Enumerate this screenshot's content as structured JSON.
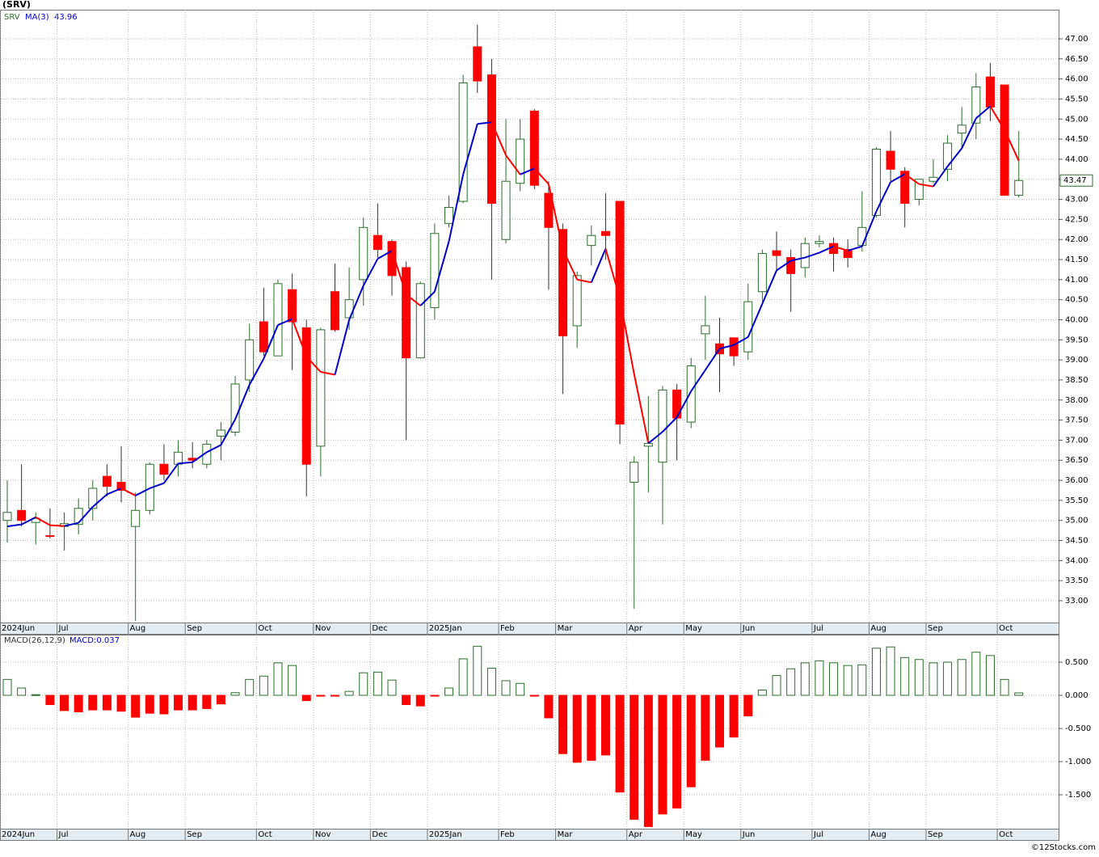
{
  "source": "©12Stocks.com",
  "chart_data": [
    {
      "type": "candlestick",
      "title": "(SRV)",
      "ticker": "SRV",
      "categories": [
        "2024Jun",
        null,
        null,
        null,
        "Jul",
        null,
        null,
        null,
        null,
        "Aug",
        null,
        null,
        null,
        "Sep",
        null,
        null,
        null,
        null,
        "Oct",
        null,
        null,
        null,
        "Nov",
        null,
        null,
        null,
        "Dec",
        null,
        null,
        null,
        "2025Jan",
        null,
        null,
        null,
        null,
        "Feb",
        null,
        null,
        null,
        "Mar",
        null,
        null,
        null,
        null,
        "Apr",
        null,
        null,
        null,
        "May",
        null,
        null,
        null,
        "Jun",
        null,
        null,
        null,
        null,
        "Jul",
        null,
        null,
        null,
        "Aug",
        null,
        null,
        null,
        "Sep",
        null,
        null,
        null,
        null,
        "Oct",
        null
      ],
      "open": [
        35.0,
        35.25,
        34.95,
        34.62,
        34.85,
        34.9,
        35.3,
        36.1,
        35.95,
        34.85,
        35.25,
        36.4,
        36.4,
        36.55,
        36.4,
        37.1,
        37.2,
        38.5,
        39.95,
        39.1,
        40.75,
        39.8,
        36.85,
        40.7,
        40.05,
        41.0,
        42.1,
        41.95,
        41.3,
        39.05,
        40.3,
        42.4,
        42.95,
        46.8,
        46.1,
        42.0,
        43.4,
        45.2,
        43.15,
        42.25,
        39.85,
        41.85,
        42.2,
        42.95,
        35.95,
        36.85,
        36.45,
        38.25,
        37.45,
        39.65,
        39.4,
        39.55,
        39.2,
        40.7,
        41.72,
        41.55,
        41.3,
        41.9,
        41.9,
        41.75,
        41.85,
        42.6,
        44.2,
        43.7,
        43.0,
        43.45,
        43.75,
        44.65,
        44.9,
        46.05,
        45.85,
        43.1
      ],
      "high": [
        36.0,
        36.4,
        35.2,
        35.3,
        35.2,
        35.55,
        36.0,
        36.4,
        36.85,
        35.7,
        36.45,
        36.9,
        37.0,
        36.95,
        37.0,
        37.45,
        38.6,
        39.9,
        40.8,
        41.0,
        41.15,
        40.0,
        39.8,
        41.4,
        41.3,
        42.55,
        42.9,
        42.0,
        41.45,
        40.95,
        42.4,
        43.1,
        46.1,
        47.35,
        46.5,
        45.0,
        45.0,
        45.25,
        43.45,
        42.4,
        41.2,
        42.35,
        43.15,
        42.95,
        36.6,
        38.1,
        38.35,
        38.4,
        39.05,
        40.6,
        40.05,
        39.55,
        40.9,
        41.75,
        42.2,
        41.75,
        42.05,
        42.1,
        42.05,
        42.0,
        43.2,
        44.3,
        44.7,
        43.8,
        43.5,
        44.0,
        44.6,
        45.3,
        46.15,
        46.4,
        45.85,
        44.7
      ],
      "low": [
        34.45,
        34.85,
        34.4,
        34.55,
        34.25,
        34.65,
        35.0,
        35.6,
        35.45,
        32.5,
        35.15,
        36.0,
        36.1,
        36.3,
        36.3,
        36.5,
        37.1,
        38.2,
        39.1,
        39.1,
        38.75,
        35.6,
        36.1,
        39.7,
        39.75,
        40.35,
        41.55,
        40.6,
        37.0,
        39.05,
        40.0,
        42.3,
        42.9,
        45.65,
        41.0,
        41.9,
        43.2,
        43.25,
        40.75,
        38.15,
        39.3,
        41.35,
        41.5,
        36.9,
        32.8,
        35.7,
        34.9,
        36.5,
        37.3,
        39.0,
        38.2,
        38.85,
        39.0,
        40.45,
        41.2,
        40.2,
        41.05,
        41.8,
        41.2,
        41.3,
        41.7,
        42.55,
        43.45,
        42.3,
        42.85,
        43.4,
        43.45,
        44.3,
        44.5,
        44.95,
        43.1,
        43.05
      ],
      "close": [
        35.2,
        35.0,
        35.05,
        34.6,
        34.92,
        35.3,
        35.8,
        35.85,
        35.75,
        35.25,
        36.4,
        36.15,
        36.7,
        36.5,
        36.9,
        37.25,
        38.4,
        39.5,
        39.2,
        40.9,
        39.95,
        36.4,
        39.75,
        39.75,
        40.5,
        42.3,
        41.75,
        41.1,
        39.05,
        40.9,
        42.15,
        42.8,
        45.9,
        45.95,
        42.9,
        43.45,
        44.5,
        43.35,
        42.3,
        39.6,
        41.1,
        42.1,
        42.1,
        37.4,
        36.45,
        36.92,
        38.25,
        37.55,
        38.85,
        39.85,
        39.15,
        39.1,
        40.45,
        41.65,
        41.6,
        41.15,
        41.9,
        41.95,
        41.65,
        41.55,
        42.3,
        44.25,
        43.75,
        42.9,
        43.5,
        43.55,
        44.4,
        44.85,
        45.8,
        45.3,
        43.1,
        43.47
      ],
      "up_color": "#2a6e2a",
      "down_color": "#ff0000",
      "ma": {
        "name": "MA(3)",
        "up_color": "#0000cc",
        "down_color": "#ff0000",
        "values": [
          34.85,
          34.9,
          35.08,
          34.88,
          34.86,
          34.94,
          35.34,
          35.65,
          35.8,
          35.62,
          35.8,
          35.93,
          36.42,
          36.45,
          36.7,
          36.88,
          37.52,
          38.38,
          39.03,
          39.87,
          40.02,
          39.08,
          38.7,
          38.63,
          40.0,
          40.85,
          41.52,
          41.72,
          40.63,
          40.35,
          40.7,
          41.95,
          43.62,
          44.88,
          44.92,
          44.1,
          43.62,
          43.77,
          43.38,
          41.75,
          41.0,
          40.93,
          41.77,
          40.53,
          38.65,
          36.92,
          37.21,
          37.57,
          38.22,
          38.75,
          39.28,
          39.37,
          39.57,
          40.4,
          41.23,
          41.47,
          41.55,
          41.67,
          41.83,
          41.72,
          41.83,
          42.7,
          43.43,
          43.63,
          43.38,
          43.32,
          43.82,
          44.27,
          45.02,
          45.32,
          44.73,
          43.96
        ]
      },
      "ylim": [
        32.456,
        47.725
      ],
      "yticks": [
        {
          "value": 47,
          "label": "47.00"
        },
        {
          "value": 46.5,
          "label": "46.50"
        },
        {
          "value": 46,
          "label": "46.00"
        },
        {
          "value": 45.5,
          "label": "45.50"
        },
        {
          "value": 45,
          "label": "45.00"
        },
        {
          "value": 44.5,
          "label": "44.50"
        },
        {
          "value": 44,
          "label": "44.00"
        },
        {
          "value": 43.5,
          "label": "43.50"
        },
        {
          "value": 43,
          "label": "43.00"
        },
        {
          "value": 42.5,
          "label": "42.50"
        },
        {
          "value": 42,
          "label": "42.00"
        },
        {
          "value": 41.5,
          "label": "41.50"
        },
        {
          "value": 41,
          "label": "41.00"
        },
        {
          "value": 40.5,
          "label": "40.50"
        },
        {
          "value": 40,
          "label": "40.00"
        },
        {
          "value": 39.5,
          "label": "39.50"
        },
        {
          "value": 39,
          "label": "39.00"
        },
        {
          "value": 38.5,
          "label": "38.50"
        },
        {
          "value": 38,
          "label": "38.00"
        },
        {
          "value": 37.5,
          "label": "37.50"
        },
        {
          "value": 37,
          "label": "37.00"
        },
        {
          "value": 36.5,
          "label": "36.50"
        },
        {
          "value": 36,
          "label": "36.00"
        },
        {
          "value": 35.5,
          "label": "35.50"
        },
        {
          "value": 35,
          "label": "35.00"
        },
        {
          "value": 34.5,
          "label": "34.50"
        },
        {
          "value": 34,
          "label": "34.00"
        },
        {
          "value": 33.5,
          "label": "33.50"
        },
        {
          "value": 33,
          "label": "33.00"
        }
      ],
      "grid": true
    },
    {
      "type": "bar",
      "title": "MACD(26,12,9)",
      "readout": "MACD:0.037",
      "up_color": "#2a6e2a",
      "down_color": "#ff0000",
      "values": [
        0.24,
        0.11,
        0.01,
        -0.14,
        -0.23,
        -0.25,
        -0.22,
        -0.22,
        -0.24,
        -0.33,
        -0.27,
        -0.28,
        -0.22,
        -0.22,
        -0.2,
        -0.13,
        0.04,
        0.24,
        0.29,
        0.49,
        0.45,
        -0.08,
        -0.01,
        -0.01,
        0.06,
        0.34,
        0.35,
        0.23,
        -0.14,
        -0.16,
        -0.01,
        0.11,
        0.55,
        0.74,
        0.41,
        0.22,
        0.18,
        -0.01,
        -0.34,
        -0.88,
        -1.01,
        -0.98,
        -0.9,
        -1.46,
        -1.87,
        -1.98,
        -1.79,
        -1.7,
        -1.38,
        -0.98,
        -0.78,
        -0.63,
        -0.31,
        0.08,
        0.3,
        0.4,
        0.49,
        0.52,
        0.49,
        0.45,
        0.46,
        0.71,
        0.73,
        0.57,
        0.54,
        0.49,
        0.5,
        0.54,
        0.65,
        0.6,
        0.24,
        0.037
      ],
      "ylim": [
        -2.012,
        0.915
      ],
      "yticks": [
        {
          "value": 0.5,
          "label": "0.500"
        },
        {
          "value": 0,
          "label": "0.000"
        },
        {
          "value": -0.5,
          "label": "-0.500"
        },
        {
          "value": -1,
          "label": "-1.000"
        },
        {
          "value": -1.5,
          "label": "-1.500"
        }
      ],
      "grid": true
    }
  ]
}
